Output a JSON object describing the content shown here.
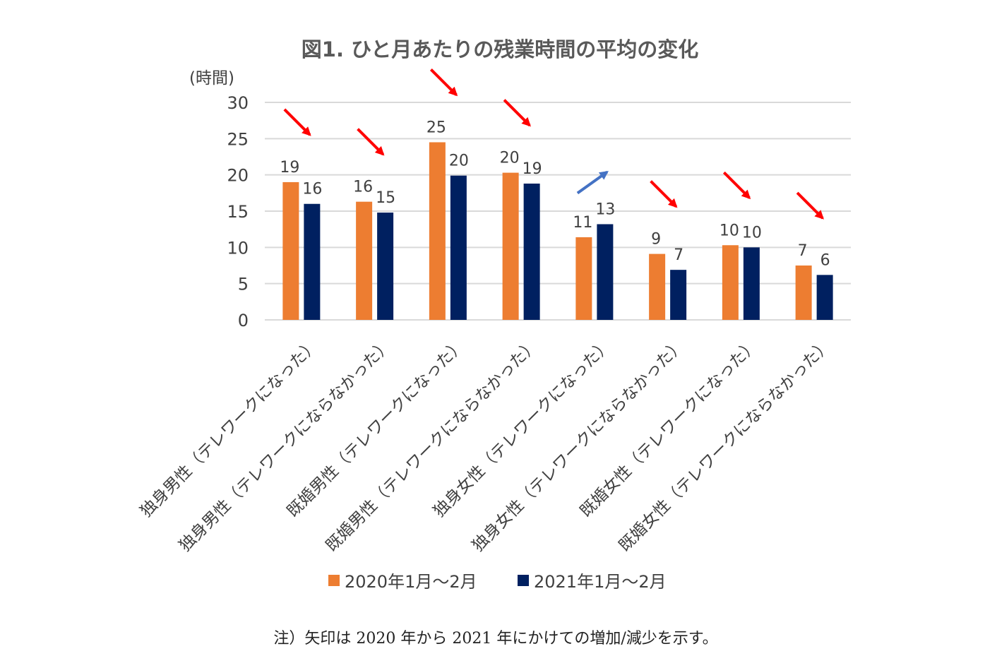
{
  "chart_data": {
    "type": "bar",
    "title": "図1. ひと月あたりの残業時間の平均の変化",
    "ylabel": "(時間)",
    "ylim": [
      0,
      30
    ],
    "yticks": [
      "0",
      "5",
      "10",
      "15",
      "20",
      "25",
      "30"
    ],
    "grid": true,
    "legend_position": "bottom",
    "categories": [
      "独身男性（テレワークになった）",
      "独身男性（テレワークにならなかった）",
      "既婚男性（テレワークになった）",
      "既婚男性（テレワークにならなかった）",
      "独身女性（テレワークになった）",
      "独身女性（テレワークにならなかった）",
      "既婚女性（テレワークになった）",
      "既婚女性（テレワークにならなかった）"
    ],
    "series": [
      {
        "name": "2020年1月～2月",
        "color": "#ed7d31",
        "values": [
          19.0,
          16.3,
          24.5,
          20.3,
          11.4,
          9.1,
          10.3,
          7.5
        ],
        "labels": [
          "19",
          "16",
          "25",
          "20",
          "11",
          "9",
          "10",
          "7"
        ]
      },
      {
        "name": "2021年1月～2月",
        "color": "#002060",
        "values": [
          16.0,
          14.8,
          19.9,
          18.8,
          13.2,
          6.9,
          10.0,
          6.2
        ],
        "labels": [
          "16",
          "15",
          "20",
          "19",
          "13",
          "7",
          "10",
          "6"
        ]
      }
    ],
    "arrows": {
      "decrease_color": "#ff0000",
      "increase_color": "#4472c4",
      "directions": [
        "down",
        "down",
        "down",
        "down",
        "up",
        "down",
        "down",
        "down"
      ]
    },
    "note": "注）矢印は 2020 年から 2021 年にかけての増加/減少を示す。"
  }
}
